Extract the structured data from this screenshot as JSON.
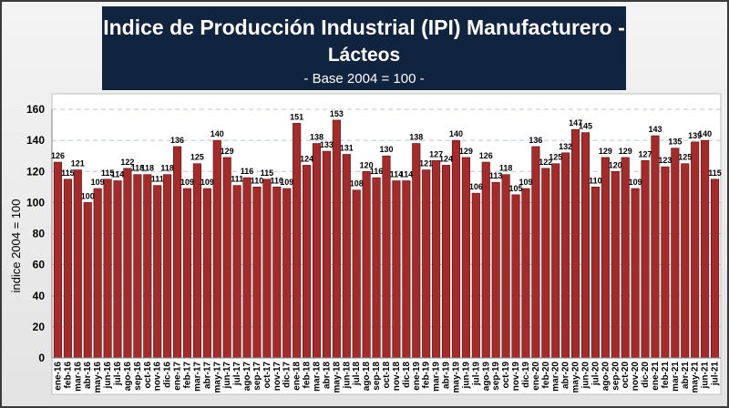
{
  "chart_data": {
    "type": "bar",
    "title_line1": "Indice de Producción Industrial (IPI) Manufacturero -",
    "title_line2": "Lácteos",
    "subtitle": "- Base 2004 = 100 -",
    "ylabel": "indice 2004 = 100",
    "ylim": [
      0,
      160
    ],
    "yticks": [
      0,
      20,
      40,
      60,
      80,
      100,
      120,
      140,
      160
    ],
    "grid": true,
    "bar_color": "#a52a2a",
    "categories": [
      "ene-16",
      "feb-16",
      "mar-16",
      "abr-16",
      "may-16",
      "jun-16",
      "jul-16",
      "ago-16",
      "sep-16",
      "oct-16",
      "nov-16",
      "dic-16",
      "ene-17",
      "feb-17",
      "mar-17",
      "abr-17",
      "may-17",
      "jun-17",
      "jul-17",
      "ago-17",
      "sep-17",
      "oct-17",
      "nov-17",
      "dic-17",
      "ene-18",
      "feb-18",
      "mar-18",
      "abr-18",
      "may-18",
      "jun-18",
      "jul-18",
      "ago-18",
      "sep-18",
      "oct-18",
      "nov-18",
      "dic-18",
      "ene-19",
      "feb-19",
      "mar-19",
      "abr-19",
      "may-19",
      "jun-19",
      "jul-19",
      "ago-19",
      "sep-19",
      "oct-19",
      "nov-19",
      "dic-19",
      "ene-20",
      "feb-20",
      "mar-20",
      "abr-20",
      "may-20",
      "jun-20",
      "jul-20",
      "ago-20",
      "sep-20",
      "oct-20",
      "nov-20",
      "dic-20",
      "ene-21",
      "feb-21",
      "mar-21",
      "abr-21",
      "may-21",
      "jun-21",
      "jul-21"
    ],
    "values": [
      126,
      115,
      121,
      100,
      109,
      115,
      114,
      122,
      118,
      118,
      111,
      118,
      136,
      109,
      125,
      109,
      140,
      129,
      111,
      116,
      110,
      115,
      110,
      109,
      151,
      124,
      138,
      133,
      153,
      131,
      108,
      120,
      116,
      130,
      114,
      114,
      138,
      121,
      127,
      124,
      140,
      129,
      106,
      126,
      113,
      118,
      105,
      109,
      136,
      122,
      125,
      132,
      147,
      145,
      110,
      129,
      120,
      129,
      109,
      127,
      143,
      123,
      135,
      125,
      139,
      140,
      115
    ]
  }
}
